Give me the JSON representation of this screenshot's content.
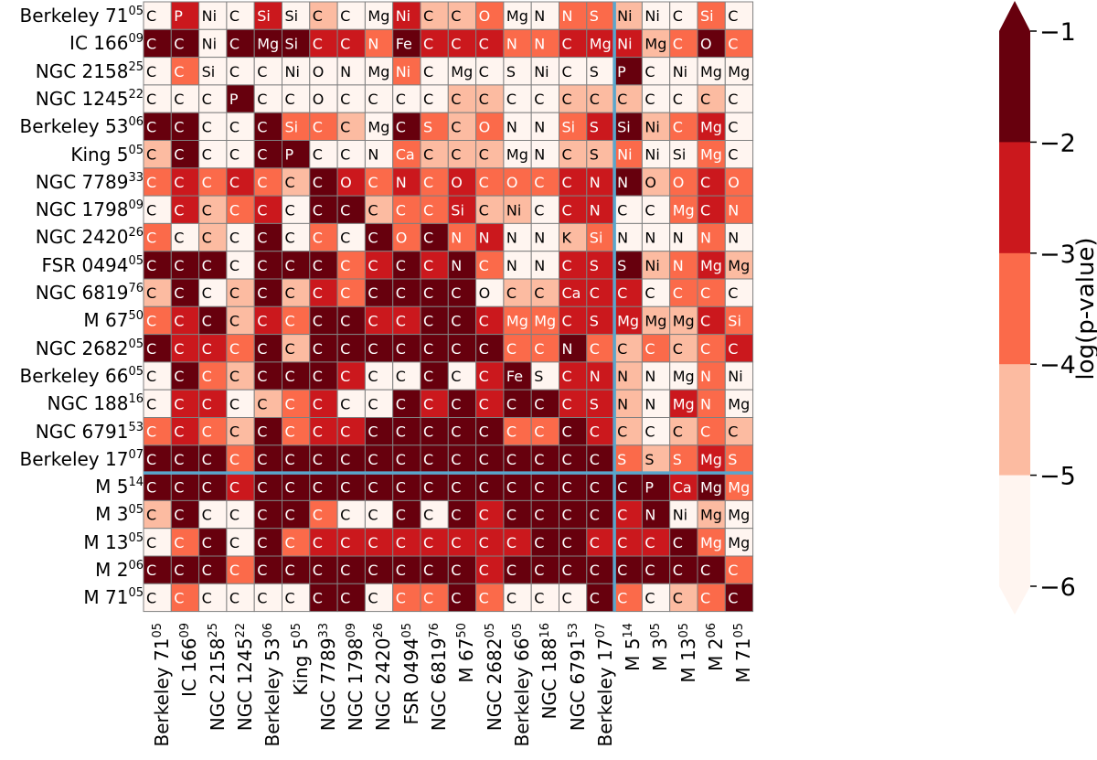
{
  "chart_data": {
    "type": "heatmap",
    "rows": [
      {
        "name": "Berkeley 71",
        "sup": "05"
      },
      {
        "name": "IC 166",
        "sup": "09"
      },
      {
        "name": "NGC 2158",
        "sup": "25"
      },
      {
        "name": "NGC 1245",
        "sup": "22"
      },
      {
        "name": "Berkeley 53",
        "sup": "06"
      },
      {
        "name": "King 5",
        "sup": "05"
      },
      {
        "name": "NGC 7789",
        "sup": "33"
      },
      {
        "name": "NGC 1798",
        "sup": "09"
      },
      {
        "name": "NGC 2420",
        "sup": "26"
      },
      {
        "name": "FSR 0494",
        "sup": "05"
      },
      {
        "name": "NGC 6819",
        "sup": "76"
      },
      {
        "name": "M 67",
        "sup": "50"
      },
      {
        "name": "NGC 2682",
        "sup": "05"
      },
      {
        "name": "Berkeley 66",
        "sup": "05"
      },
      {
        "name": "NGC 188",
        "sup": "16"
      },
      {
        "name": "NGC 6791",
        "sup": "53"
      },
      {
        "name": "Berkeley 17",
        "sup": "07"
      },
      {
        "name": "M 5",
        "sup": "14"
      },
      {
        "name": "M 3",
        "sup": "05"
      },
      {
        "name": "M 13",
        "sup": "05"
      },
      {
        "name": "M 2",
        "sup": "06"
      },
      {
        "name": "M 71",
        "sup": "05"
      }
    ],
    "columns": [
      {
        "name": "Berkeley 71",
        "sup": "05"
      },
      {
        "name": "IC 166",
        "sup": "09"
      },
      {
        "name": "NGC 2158",
        "sup": "25"
      },
      {
        "name": "NGC 1245",
        "sup": "22"
      },
      {
        "name": "Berkeley 53",
        "sup": "06"
      },
      {
        "name": "King 5",
        "sup": "05"
      },
      {
        "name": "NGC 7789",
        "sup": "33"
      },
      {
        "name": "NGC 1798",
        "sup": "09"
      },
      {
        "name": "NGC 2420",
        "sup": "26"
      },
      {
        "name": "FSR 0494",
        "sup": "05"
      },
      {
        "name": "NGC 6819",
        "sup": "76"
      },
      {
        "name": "M 67",
        "sup": "50"
      },
      {
        "name": "NGC 2682",
        "sup": "05"
      },
      {
        "name": "Berkeley 66",
        "sup": "05"
      },
      {
        "name": "NGC 188",
        "sup": "16"
      },
      {
        "name": "NGC 6791",
        "sup": "53"
      },
      {
        "name": "Berkeley 17",
        "sup": "07"
      },
      {
        "name": "M 5",
        "sup": "14"
      },
      {
        "name": "M 3",
        "sup": "05"
      },
      {
        "name": "M 13",
        "sup": "05"
      },
      {
        "name": "M 2",
        "sup": "06"
      },
      {
        "name": "M 71",
        "sup": "05"
      }
    ],
    "labels": [
      [
        "C",
        "P",
        "Ni",
        "C",
        "Si",
        "Si",
        "C",
        "C",
        "Mg",
        "Ni",
        "C",
        "C",
        "O",
        "Mg",
        "N",
        "N",
        "S",
        "Ni",
        "Ni",
        "C",
        "Si",
        "C"
      ],
      [
        "C",
        "C",
        "Ni",
        "C",
        "Mg",
        "Si",
        "C",
        "C",
        "N",
        "Fe",
        "C",
        "C",
        "C",
        "N",
        "N",
        "C",
        "Mg",
        "Ni",
        "Mg",
        "C",
        "O",
        "C"
      ],
      [
        "C",
        "C",
        "Si",
        "C",
        "C",
        "Ni",
        "O",
        "N",
        "Mg",
        "Ni",
        "C",
        "Mg",
        "C",
        "S",
        "Ni",
        "C",
        "S",
        "P",
        "C",
        "Ni",
        "Mg",
        "Mg"
      ],
      [
        "C",
        "C",
        "C",
        "P",
        "C",
        "C",
        "O",
        "C",
        "C",
        "C",
        "C",
        "C",
        "C",
        "C",
        "C",
        "C",
        "C",
        "C",
        "C",
        "C",
        "C",
        "C"
      ],
      [
        "C",
        "C",
        "C",
        "C",
        "C",
        "Si",
        "C",
        "C",
        "Mg",
        "C",
        "S",
        "C",
        "O",
        "N",
        "N",
        "Si",
        "S",
        "Si",
        "Ni",
        "C",
        "Mg",
        "C"
      ],
      [
        "C",
        "C",
        "C",
        "C",
        "C",
        "P",
        "C",
        "C",
        "N",
        "Ca",
        "C",
        "C",
        "C",
        "Mg",
        "N",
        "C",
        "S",
        "Ni",
        "Ni",
        "Si",
        "Mg",
        "C"
      ],
      [
        "C",
        "C",
        "C",
        "C",
        "C",
        "C",
        "C",
        "O",
        "C",
        "N",
        "C",
        "O",
        "C",
        "O",
        "C",
        "C",
        "N",
        "N",
        "O",
        "O",
        "C",
        "O"
      ],
      [
        "C",
        "C",
        "C",
        "C",
        "C",
        "C",
        "C",
        "C",
        "C",
        "C",
        "C",
        "Si",
        "C",
        "Ni",
        "C",
        "C",
        "N",
        "C",
        "C",
        "Mg",
        "C",
        "N"
      ],
      [
        "C",
        "C",
        "C",
        "C",
        "C",
        "C",
        "C",
        "C",
        "C",
        "O",
        "C",
        "N",
        "N",
        "N",
        "N",
        "K",
        "Si",
        "N",
        "N",
        "N",
        "N",
        "N"
      ],
      [
        "C",
        "C",
        "C",
        "C",
        "C",
        "C",
        "C",
        "C",
        "C",
        "C",
        "C",
        "N",
        "C",
        "N",
        "N",
        "C",
        "S",
        "S",
        "Ni",
        "N",
        "Mg",
        "Mg"
      ],
      [
        "C",
        "C",
        "C",
        "C",
        "C",
        "C",
        "C",
        "C",
        "C",
        "C",
        "C",
        "C",
        "O",
        "C",
        "C",
        "Ca",
        "C",
        "C",
        "C",
        "C",
        "C",
        "C"
      ],
      [
        "C",
        "C",
        "C",
        "C",
        "C",
        "C",
        "C",
        "C",
        "C",
        "C",
        "C",
        "C",
        "C",
        "Mg",
        "Mg",
        "C",
        "S",
        "Mg",
        "Mg",
        "Mg",
        "C",
        "Si"
      ],
      [
        "C",
        "C",
        "C",
        "C",
        "C",
        "C",
        "C",
        "C",
        "C",
        "C",
        "C",
        "C",
        "C",
        "C",
        "C",
        "N",
        "C",
        "C",
        "C",
        "C",
        "C",
        "C"
      ],
      [
        "C",
        "C",
        "C",
        "C",
        "C",
        "C",
        "C",
        "C",
        "C",
        "C",
        "C",
        "C",
        "C",
        "Fe",
        "S",
        "C",
        "N",
        "N",
        "N",
        "Mg",
        "N",
        "Ni"
      ],
      [
        "C",
        "C",
        "C",
        "C",
        "C",
        "C",
        "C",
        "C",
        "C",
        "C",
        "C",
        "C",
        "C",
        "C",
        "C",
        "C",
        "S",
        "N",
        "N",
        "Mg",
        "N",
        "Mg"
      ],
      [
        "C",
        "C",
        "C",
        "C",
        "C",
        "C",
        "C",
        "C",
        "C",
        "C",
        "C",
        "C",
        "C",
        "C",
        "C",
        "C",
        "C",
        "C",
        "C",
        "C",
        "C",
        "C"
      ],
      [
        "C",
        "C",
        "C",
        "C",
        "C",
        "C",
        "C",
        "C",
        "C",
        "C",
        "C",
        "C",
        "C",
        "C",
        "C",
        "C",
        "C",
        "S",
        "S",
        "S",
        "Mg",
        "S"
      ],
      [
        "C",
        "C",
        "C",
        "C",
        "C",
        "C",
        "C",
        "C",
        "C",
        "C",
        "C",
        "C",
        "C",
        "C",
        "C",
        "C",
        "C",
        "C",
        "P",
        "Ca",
        "Mg",
        "Mg"
      ],
      [
        "C",
        "C",
        "C",
        "C",
        "C",
        "C",
        "C",
        "C",
        "C",
        "C",
        "C",
        "C",
        "C",
        "C",
        "C",
        "C",
        "C",
        "C",
        "N",
        "Ni",
        "Mg",
        "Mg"
      ],
      [
        "C",
        "C",
        "C",
        "C",
        "C",
        "C",
        "C",
        "C",
        "C",
        "C",
        "C",
        "C",
        "C",
        "C",
        "C",
        "C",
        "C",
        "C",
        "C",
        "C",
        "Mg",
        "Mg"
      ],
      [
        "C",
        "C",
        "C",
        "C",
        "C",
        "C",
        "C",
        "C",
        "C",
        "C",
        "C",
        "C",
        "C",
        "C",
        "C",
        "C",
        "C",
        "C",
        "C",
        "C",
        "C",
        "C"
      ],
      [
        "C",
        "C",
        "C",
        "C",
        "C",
        "C",
        "C",
        "C",
        "C",
        "C",
        "C",
        "C",
        "C",
        "C",
        "C",
        "C",
        "C",
        "C",
        "C",
        "C",
        "C",
        "C"
      ]
    ],
    "levels": [
      [
        5,
        2,
        5,
        5,
        2,
        5,
        4,
        5,
        5,
        2,
        4,
        4,
        3,
        5,
        5,
        3,
        3,
        4,
        5,
        5,
        3,
        5
      ],
      [
        1,
        1,
        5,
        1,
        1,
        1,
        2,
        2,
        3,
        1,
        2,
        2,
        2,
        3,
        3,
        2,
        2,
        2,
        4,
        3,
        1,
        3
      ],
      [
        5,
        3,
        5,
        5,
        5,
        5,
        5,
        5,
        5,
        3,
        5,
        5,
        5,
        5,
        5,
        5,
        5,
        1,
        5,
        5,
        5,
        5
      ],
      [
        5,
        5,
        5,
        1,
        5,
        5,
        5,
        5,
        5,
        5,
        5,
        4,
        4,
        5,
        5,
        4,
        4,
        4,
        5,
        5,
        4,
        5
      ],
      [
        1,
        1,
        5,
        5,
        1,
        3,
        3,
        4,
        5,
        1,
        3,
        4,
        3,
        5,
        5,
        3,
        2,
        1,
        4,
        3,
        2,
        5
      ],
      [
        4,
        1,
        5,
        5,
        1,
        1,
        5,
        5,
        5,
        3,
        4,
        4,
        4,
        5,
        5,
        4,
        4,
        3,
        5,
        5,
        3,
        5
      ],
      [
        3,
        2,
        3,
        2,
        3,
        4,
        1,
        2,
        3,
        2,
        3,
        2,
        3,
        3,
        3,
        2,
        2,
        1,
        4,
        3,
        2,
        3
      ],
      [
        5,
        2,
        4,
        3,
        2,
        5,
        1,
        1,
        4,
        3,
        3,
        2,
        4,
        4,
        5,
        2,
        2,
        5,
        5,
        3,
        2,
        3
      ],
      [
        3,
        5,
        4,
        5,
        1,
        5,
        3,
        5,
        1,
        3,
        1,
        3,
        2,
        5,
        5,
        4,
        3,
        5,
        5,
        5,
        3,
        5
      ],
      [
        1,
        1,
        1,
        5,
        1,
        1,
        1,
        3,
        2,
        1,
        2,
        1,
        3,
        5,
        5,
        2,
        2,
        1,
        4,
        3,
        2,
        4
      ],
      [
        4,
        1,
        5,
        4,
        1,
        4,
        2,
        3,
        1,
        1,
        1,
        1,
        5,
        4,
        4,
        2,
        2,
        2,
        5,
        3,
        3,
        5
      ],
      [
        3,
        2,
        1,
        4,
        2,
        3,
        1,
        1,
        2,
        2,
        1,
        1,
        2,
        3,
        3,
        2,
        2,
        2,
        4,
        4,
        2,
        3
      ],
      [
        1,
        2,
        2,
        3,
        1,
        4,
        1,
        1,
        1,
        1,
        1,
        1,
        1,
        3,
        3,
        1,
        3,
        4,
        3,
        4,
        3,
        2
      ],
      [
        5,
        1,
        3,
        4,
        1,
        1,
        1,
        2,
        5,
        5,
        1,
        5,
        2,
        1,
        5,
        2,
        2,
        4,
        5,
        5,
        3,
        5
      ],
      [
        5,
        2,
        2,
        5,
        4,
        3,
        2,
        5,
        5,
        1,
        2,
        1,
        2,
        1,
        1,
        2,
        2,
        4,
        5,
        2,
        3,
        5
      ],
      [
        3,
        2,
        3,
        4,
        1,
        3,
        2,
        2,
        1,
        1,
        1,
        1,
        1,
        3,
        3,
        1,
        2,
        4,
        5,
        4,
        3,
        4
      ],
      [
        1,
        1,
        1,
        3,
        1,
        1,
        1,
        1,
        1,
        1,
        1,
        1,
        1,
        1,
        1,
        1,
        1,
        3,
        4,
        3,
        2,
        3
      ],
      [
        1,
        1,
        1,
        2,
        1,
        1,
        1,
        1,
        1,
        1,
        1,
        1,
        1,
        1,
        1,
        1,
        1,
        1,
        1,
        2,
        1,
        3
      ],
      [
        4,
        1,
        5,
        5,
        1,
        1,
        3,
        5,
        5,
        1,
        5,
        1,
        2,
        1,
        1,
        1,
        1,
        2,
        1,
        5,
        4,
        5
      ],
      [
        5,
        3,
        1,
        5,
        1,
        3,
        2,
        2,
        2,
        2,
        2,
        2,
        2,
        2,
        1,
        1,
        2,
        2,
        2,
        1,
        3,
        5
      ],
      [
        1,
        1,
        1,
        3,
        1,
        1,
        1,
        1,
        1,
        1,
        1,
        1,
        2,
        1,
        1,
        1,
        1,
        1,
        1,
        1,
        1,
        3
      ],
      [
        5,
        3,
        5,
        5,
        5,
        5,
        1,
        1,
        5,
        3,
        3,
        1,
        3,
        5,
        5,
        5,
        1,
        3,
        5,
        4,
        3,
        1
      ]
    ],
    "colorbar": {
      "label": "log(p-value)",
      "ticks": [
        "−1",
        "−2",
        "−3",
        "−4",
        "−5",
        "−6"
      ],
      "colors": [
        "#67000d",
        "#cb181d",
        "#fb6a4a",
        "#fcbba1",
        "#fff5f0"
      ]
    },
    "separator_after_index": 16,
    "separator_color": "#5aa6cc"
  }
}
